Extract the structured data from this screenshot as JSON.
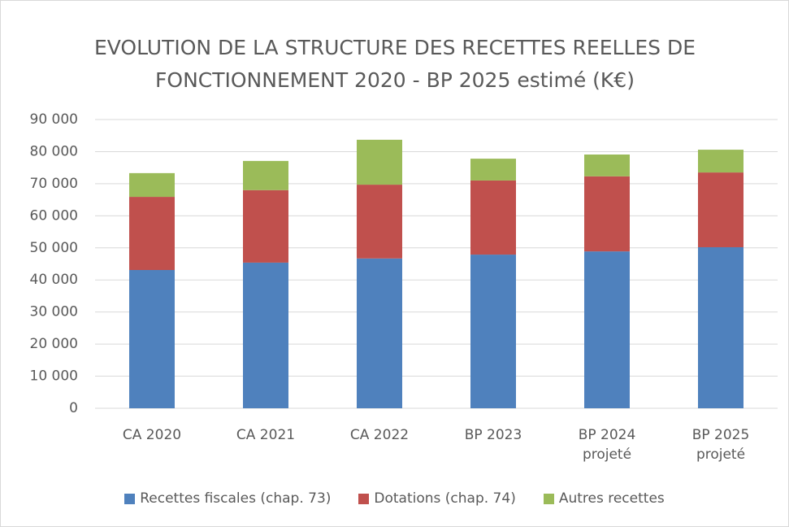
{
  "chart_data": {
    "type": "stacked-bar",
    "title": "EVOLUTION DE LA STRUCTURE DES RECETTES REELLES DE FONCTIONNEMENT 2020 - BP 2025 estimé (K€)",
    "categories": [
      "CA 2020",
      "CA 2021",
      "CA 2022",
      "BP 2023",
      "BP 2024 projeté",
      "BP 2025 projeté"
    ],
    "series": [
      {
        "name": "Recettes fiscales (chap. 73)",
        "color": "#4f81bd",
        "values": [
          43100,
          45400,
          46700,
          47900,
          48900,
          50200
        ]
      },
      {
        "name": "Dotations (chap. 74)",
        "color": "#c0504d",
        "values": [
          22800,
          22600,
          23000,
          23100,
          23400,
          23300
        ]
      },
      {
        "name": "Autres recettes",
        "color": "#9bbb59",
        "values": [
          7400,
          9100,
          14000,
          6800,
          6800,
          7100
        ]
      }
    ],
    "ylim": [
      0,
      90000
    ],
    "yticks": [
      0,
      {
        "value": 10000,
        "label": "10 000"
      },
      {
        "value": 20000,
        "label": "20 000"
      },
      {
        "value": 30000,
        "label": "30 000"
      },
      {
        "value": 40000,
        "label": "40 000"
      },
      {
        "value": 50000,
        "label": "50 000"
      },
      {
        "value": 60000,
        "label": "60 000"
      },
      {
        "value": 70000,
        "label": "70 000"
      },
      {
        "value": 80000,
        "label": "80 000"
      },
      {
        "value": 90000,
        "label": "90 000"
      }
    ],
    "grid": true,
    "legend": "bottom"
  }
}
